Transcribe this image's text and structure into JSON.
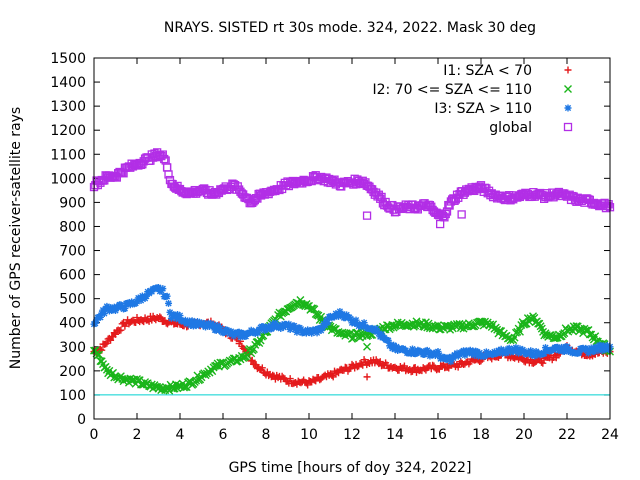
{
  "chart_data": {
    "type": "scatter",
    "title": "NRAYS. SISTED rt 30s mode. 324, 2022. Mask 30 deg",
    "xlabel": "GPS time [hours of doy 324, 2022]",
    "ylabel": "Number of GPS receiver-satellite rays",
    "xlim": [
      0,
      24
    ],
    "ylim": [
      0,
      1500
    ],
    "xticks": [
      "0",
      "2",
      "4",
      "6",
      "8",
      "10",
      "12",
      "14",
      "16",
      "18",
      "20",
      "22",
      "24"
    ],
    "yticks": [
      "0",
      "100",
      "200",
      "300",
      "400",
      "500",
      "600",
      "700",
      "800",
      "900",
      "1000",
      "1100",
      "1200",
      "1300",
      "1400",
      "1500"
    ],
    "reference_line": {
      "y": 100,
      "color": "#00d0d0"
    },
    "legend_position": "top-right",
    "series": [
      {
        "name": "I1: SZA < 70",
        "marker": "+",
        "color": "#e41a1c",
        "x": [
          0.0,
          0.3,
          0.6,
          1.0,
          1.5,
          2.0,
          2.5,
          3.0,
          3.3,
          3.6,
          4.0,
          4.5,
          5.0,
          5.5,
          6.0,
          6.5,
          7.0,
          7.3,
          7.6,
          8.0,
          8.5,
          9.0,
          9.5,
          10.0,
          10.5,
          11.0,
          11.5,
          12.0,
          12.5,
          13.0,
          13.5,
          14.0,
          14.5,
          15.0,
          15.5,
          16.0,
          16.5,
          17.0,
          17.5,
          18.0,
          18.5,
          19.0,
          19.5,
          20.0,
          20.5,
          21.0,
          21.5,
          22.0,
          22.5,
          23.0,
          23.5,
          24.0
        ],
        "values": [
          280,
          290,
          320,
          360,
          400,
          410,
          415,
          420,
          410,
          400,
          395,
          390,
          400,
          395,
          370,
          340,
          300,
          250,
          220,
          195,
          175,
          160,
          155,
          150,
          165,
          180,
          200,
          215,
          235,
          240,
          225,
          215,
          210,
          205,
          210,
          215,
          220,
          225,
          240,
          250,
          260,
          270,
          260,
          250,
          240,
          245,
          265,
          300,
          280,
          270,
          275,
          280
        ],
        "outliers": [
          {
            "x": 12.7,
            "y": 175
          },
          {
            "x": 17.1,
            "y": 230
          }
        ]
      },
      {
        "name": "I2: 70 <= SZA <= 110",
        "marker": "x",
        "color": "#1ab51a",
        "x": [
          0.0,
          0.3,
          0.6,
          1.0,
          1.5,
          2.0,
          2.5,
          3.0,
          3.5,
          4.0,
          4.5,
          5.0,
          5.5,
          6.0,
          6.5,
          7.0,
          7.5,
          8.0,
          8.5,
          9.0,
          9.3,
          9.6,
          10.0,
          10.5,
          11.0,
          11.5,
          12.0,
          12.5,
          13.0,
          13.5,
          14.0,
          14.5,
          15.0,
          15.5,
          16.0,
          16.5,
          17.0,
          17.5,
          18.0,
          18.5,
          19.0,
          19.5,
          20.0,
          20.3,
          20.6,
          21.0,
          21.5,
          22.0,
          22.5,
          23.0,
          23.5,
          24.0
        ],
        "values": [
          290,
          250,
          200,
          180,
          165,
          155,
          140,
          130,
          130,
          135,
          150,
          180,
          210,
          230,
          240,
          260,
          300,
          360,
          420,
          460,
          480,
          490,
          470,
          420,
          380,
          350,
          345,
          350,
          360,
          380,
          390,
          395,
          395,
          390,
          380,
          380,
          385,
          390,
          400,
          390,
          350,
          330,
          400,
          420,
          410,
          350,
          340,
          370,
          375,
          360,
          320,
          280
        ],
        "outliers": [
          {
            "x": 12.7,
            "y": 300
          }
        ]
      },
      {
        "name": "I3: SZA > 110",
        "marker": "*",
        "color": "#1f78e4",
        "x": [
          0.0,
          0.3,
          0.6,
          1.0,
          1.5,
          2.0,
          2.5,
          3.0,
          3.2,
          3.4,
          3.6,
          4.0,
          4.5,
          5.0,
          5.5,
          6.0,
          6.5,
          7.0,
          7.5,
          8.0,
          8.5,
          9.0,
          9.5,
          10.0,
          10.5,
          11.0,
          11.5,
          12.0,
          12.5,
          13.0,
          13.5,
          14.0,
          14.5,
          15.0,
          15.5,
          16.0,
          16.3,
          16.6,
          17.0,
          17.5,
          18.0,
          18.5,
          19.0,
          19.5,
          20.0,
          20.5,
          21.0,
          21.5,
          22.0,
          22.5,
          23.0,
          23.5,
          24.0
        ],
        "values": [
          400,
          430,
          460,
          460,
          470,
          490,
          520,
          540,
          530,
          500,
          430,
          420,
          400,
          390,
          385,
          370,
          350,
          350,
          365,
          380,
          390,
          385,
          370,
          360,
          370,
          420,
          440,
          410,
          390,
          380,
          330,
          290,
          285,
          280,
          275,
          270,
          245,
          250,
          270,
          280,
          270,
          265,
          280,
          290,
          280,
          270,
          285,
          295,
          290,
          280,
          285,
          295,
          300
        ],
        "outliers": []
      },
      {
        "name": "global",
        "marker": "square",
        "color": "#b22ee6",
        "x": [
          0.0,
          0.3,
          0.6,
          1.0,
          1.5,
          2.0,
          2.5,
          3.0,
          3.2,
          3.4,
          3.6,
          4.0,
          4.5,
          5.0,
          5.5,
          6.0,
          6.5,
          7.0,
          7.3,
          7.6,
          8.0,
          8.5,
          9.0,
          9.5,
          10.0,
          10.5,
          11.0,
          11.5,
          12.0,
          12.5,
          13.0,
          13.5,
          14.0,
          14.5,
          15.0,
          15.5,
          16.0,
          16.3,
          16.6,
          17.0,
          17.5,
          18.0,
          18.5,
          19.0,
          19.5,
          20.0,
          20.5,
          21.0,
          21.5,
          22.0,
          22.5,
          23.0,
          23.5,
          24.0
        ],
        "values": [
          975,
          990,
          1005,
          1010,
          1040,
          1060,
          1080,
          1100,
          1095,
          1050,
          980,
          950,
          940,
          950,
          935,
          955,
          970,
          930,
          900,
          920,
          940,
          955,
          975,
          985,
          995,
          1005,
          990,
          975,
          985,
          990,
          950,
          900,
          870,
          880,
          880,
          890,
          845,
          850,
          900,
          935,
          955,
          960,
          935,
          920,
          920,
          930,
          935,
          925,
          935,
          925,
          910,
          905,
          895,
          880
        ],
        "outliers": [
          {
            "x": 12.7,
            "y": 845
          },
          {
            "x": 16.1,
            "y": 810
          },
          {
            "x": 17.1,
            "y": 850
          },
          {
            "x": 3.4,
            "y": 1045
          }
        ]
      }
    ]
  }
}
